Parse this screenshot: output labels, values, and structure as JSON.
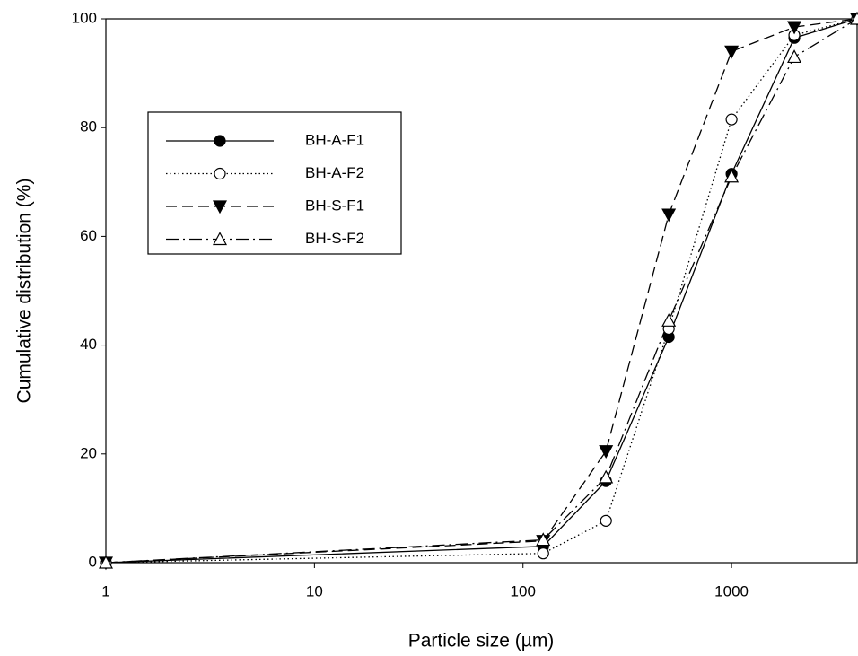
{
  "chart_data": {
    "type": "line",
    "x_label": "Particle size (µm)",
    "y_label": "Cumulative distribution (%)",
    "x": [
      1,
      125,
      250,
      500,
      1000,
      2000,
      4000
    ],
    "xscale": "log",
    "xlim": [
      1,
      4000
    ],
    "xticks": [
      1,
      10,
      100,
      1000
    ],
    "ylim": [
      0,
      100
    ],
    "yticks": [
      0,
      20,
      40,
      60,
      80,
      100
    ],
    "legend": "upper left",
    "series": [
      {
        "name": "BH-A-F1",
        "color": "#000000",
        "line_style": "solid",
        "marker": "circle",
        "marker_filled": true,
        "values": [
          0,
          3,
          15,
          41.5,
          71.5,
          96.5,
          100
        ]
      },
      {
        "name": "BH-A-F2",
        "color": "#000000",
        "line_style": "dotted",
        "marker": "circle",
        "marker_filled": false,
        "values": [
          0,
          1.7,
          7.7,
          43,
          81.5,
          97,
          100
        ]
      },
      {
        "name": "BH-S-F1",
        "color": "#000000",
        "line_style": "dashed",
        "marker": "triangle-down",
        "marker_filled": true,
        "values": [
          0,
          4,
          20.5,
          64,
          94,
          98.5,
          100
        ]
      },
      {
        "name": "BH-S-F2",
        "color": "#000000",
        "line_style": "dashdot",
        "marker": "triangle-up",
        "marker_filled": false,
        "values": [
          0,
          4.2,
          15.7,
          44.5,
          71,
          93,
          100
        ]
      }
    ]
  }
}
